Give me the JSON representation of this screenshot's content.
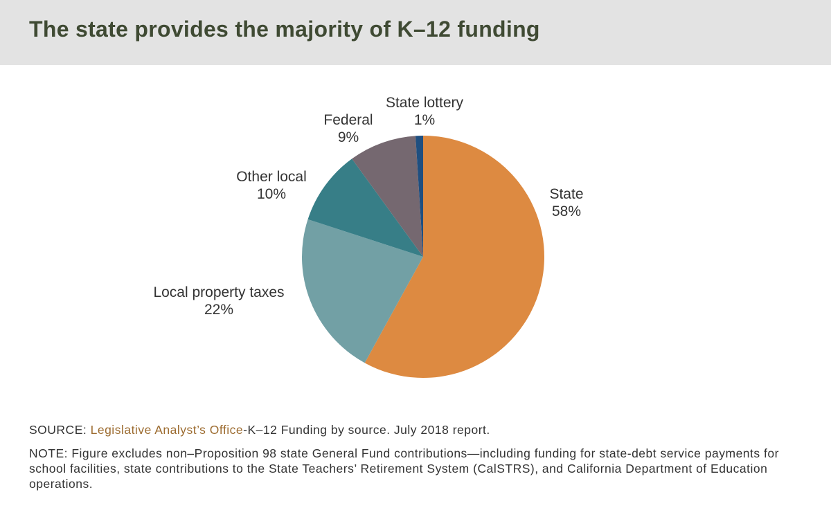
{
  "header": {
    "title": "The state provides the majority of K–12 funding"
  },
  "chart_data": {
    "type": "pie",
    "title": "The state provides the majority of K–12 funding",
    "slices": [
      {
        "label": "State",
        "value_label": "58%",
        "value": 58,
        "color": "#dd8a41"
      },
      {
        "label": "Local property taxes",
        "value_label": "22%",
        "value": 22,
        "color": "#72a0a5"
      },
      {
        "label": "Other local",
        "value_label": "10%",
        "value": 10,
        "color": "#377e87"
      },
      {
        "label": "Federal",
        "value_label": "9%",
        "value": 9,
        "color": "#756870"
      },
      {
        "label": "State lottery",
        "value_label": "1%",
        "value": 1,
        "color": "#1f4f80"
      }
    ]
  },
  "footer": {
    "source_prefix": "SOURCE: ",
    "source_link": "Legislative Analyst’s Office",
    "source_rest": "-K–12 Funding by source. July 2018 report.",
    "note": "NOTE: Figure excludes non–Proposition 98 state General Fund contributions—including funding for state-debt service payments for school facilities, state contributions to the State Teachers’ Retirement System (CalSTRS), and California Department of Education operations."
  }
}
